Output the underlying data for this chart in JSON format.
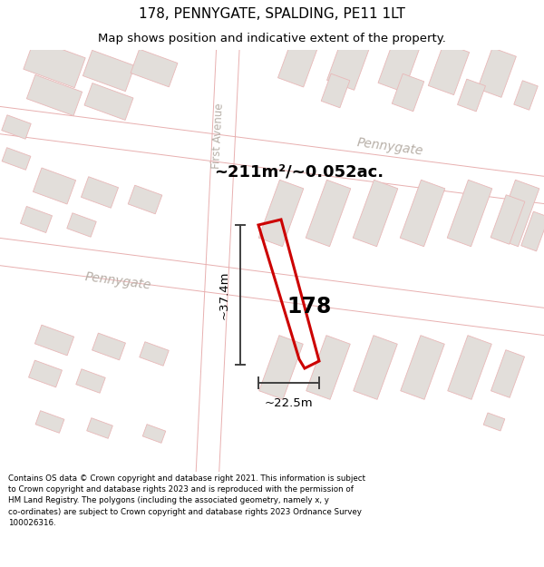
{
  "title": "178, PENNYGATE, SPALDING, PE11 1LT",
  "subtitle": "Map shows position and indicative extent of the property.",
  "area_text": "~211m²/~0.052ac.",
  "number_label": "178",
  "dim_height_label": "~37.4m",
  "dim_width_label": "~22.5m",
  "road_label_pennygate_low": "Pennygate",
  "road_label_pennygate_top": "Pennygate",
  "road_label_first_ave": "First Avenue",
  "footer_lines": [
    "Contains OS data © Crown copyright and database right 2021. This information is subject",
    "to Crown copyright and database rights 2023 and is reproduced with the permission of",
    "HM Land Registry. The polygons (including the associated geometry, namely x, y",
    "co-ordinates) are subject to Crown copyright and database rights 2023 Ordnance Survey",
    "100026316."
  ],
  "bg_white": "#ffffff",
  "map_bg": "#f8f6f4",
  "building_fill": "#e2deda",
  "building_edge_pink": "#e8b8b8",
  "building_edge_gray": "#c8c4c0",
  "road_edge_pink": "#e8b0b0",
  "red_color": "#cc0000",
  "dim_line_color": "#404040",
  "label_gray": "#b8b0a8",
  "title_fontsize": 11,
  "subtitle_fontsize": 9.5,
  "number_fontsize": 17,
  "area_fontsize": 13,
  "road_fontsize": 10,
  "dim_fontsize": 9.5,
  "footer_fontsize": 6.3,
  "tilt_deg": 20
}
